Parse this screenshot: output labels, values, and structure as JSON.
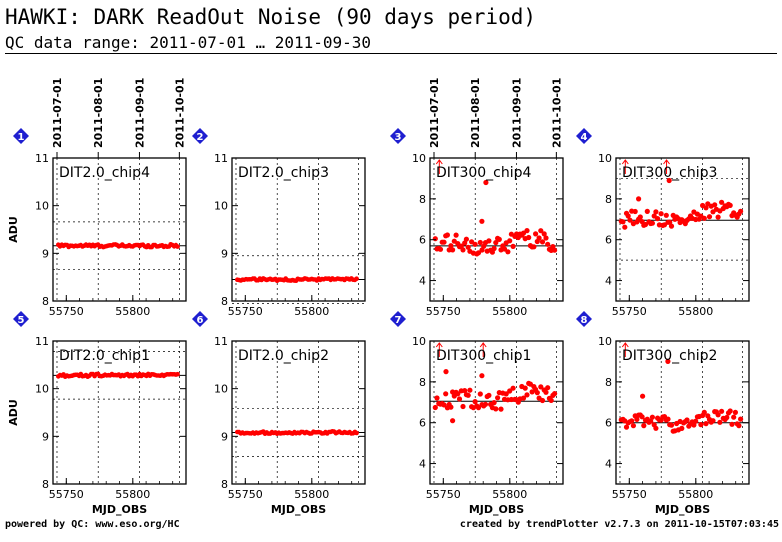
{
  "header": {
    "title": "HAWKI: DARK ReadOut Noise (90 days period)",
    "subtitle": "QC data range: 2011-07-01 … 2011-09-30"
  },
  "footer": {
    "left": "powered by QC: www.eso.org/HC",
    "right": "created by trendPlotter v2.7.3 on 2011-10-15T07:03:45"
  },
  "top_date_labels": [
    "2011-07-01",
    "2011-08-01",
    "2011-09-01",
    "2011-10-01"
  ],
  "top_date_mjd": [
    55743,
    55774,
    55805,
    55835
  ],
  "colors": {
    "data": "#ff0000",
    "badge": "#1f1fd0",
    "axis": "#000000"
  },
  "chart_data": [
    {
      "type": "scatter",
      "badge": "1",
      "label": "DIT2.0_chip4",
      "xlim": [
        55740,
        55840
      ],
      "ylim": [
        8,
        11
      ],
      "yticks": [
        8,
        9,
        10,
        11
      ],
      "xticks": [
        55750,
        55800
      ],
      "ylabel": "ADU",
      "xlabel": "",
      "median": 9.16,
      "dotted": [
        8.66,
        9.66
      ],
      "base": 9.16,
      "amplitude": 0.03,
      "trend": 0,
      "outliers": []
    },
    {
      "type": "scatter",
      "badge": "2",
      "label": "DIT2.0_chip3",
      "xlim": [
        55740,
        55840
      ],
      "ylim": [
        8,
        11
      ],
      "yticks": [
        8,
        9,
        10,
        11
      ],
      "xticks": [
        55750,
        55800
      ],
      "ylabel": "",
      "xlabel": "",
      "median": 8.45,
      "dotted": [
        7.95,
        8.95
      ],
      "base": 8.45,
      "amplitude": 0.025,
      "trend": 0,
      "outliers": []
    },
    {
      "type": "scatter",
      "badge": "3",
      "label": "DIT300_chip4",
      "xlim": [
        55740,
        55840
      ],
      "ylim": [
        3,
        10
      ],
      "yticks": [
        4,
        6,
        8,
        10
      ],
      "xticks": [
        55750,
        55800
      ],
      "ylabel": "",
      "xlabel": "",
      "median": 5.7,
      "dotted": [],
      "base": 5.6,
      "amplitude": 0.45,
      "trend": 0.004,
      "outliers": [
        [
          55782,
          8.8
        ],
        [
          55779,
          6.9
        ]
      ],
      "arrows_mjd": [
        55747
      ]
    },
    {
      "type": "scatter",
      "badge": "4",
      "label": "DIT300_chip3",
      "xlim": [
        55740,
        55840
      ],
      "ylim": [
        3,
        10
      ],
      "yticks": [
        4,
        6,
        8,
        10
      ],
      "xticks": [
        55750,
        55800
      ],
      "ylabel": "",
      "xlabel": "",
      "median": 6.95,
      "dotted": [
        5,
        9
      ],
      "base": 6.85,
      "amplitude": 0.4,
      "trend": 0.006,
      "outliers": [
        [
          55780,
          8.9
        ],
        [
          55757,
          8.0
        ]
      ],
      "arrows_mjd": [
        55747,
        55778
      ]
    },
    {
      "type": "scatter",
      "badge": "5",
      "label": "DIT2.0_chip1",
      "xlim": [
        55740,
        55840
      ],
      "ylim": [
        8,
        11
      ],
      "yticks": [
        8,
        9,
        10,
        11
      ],
      "xticks": [
        55750,
        55800
      ],
      "ylabel": "ADU",
      "xlabel": "MJD_OBS",
      "median": 10.28,
      "dotted": [
        9.78,
        10.78
      ],
      "base": 10.28,
      "amplitude": 0.03,
      "trend": 0,
      "outliers": []
    },
    {
      "type": "scatter",
      "badge": "6",
      "label": "DIT2.0_chip2",
      "xlim": [
        55740,
        55840
      ],
      "ylim": [
        8,
        11
      ],
      "yticks": [
        8,
        9,
        10,
        11
      ],
      "xticks": [
        55750,
        55800
      ],
      "ylabel": "",
      "xlabel": "MJD_OBS",
      "median": 9.08,
      "dotted": [
        8.58,
        9.58
      ],
      "base": 9.08,
      "amplitude": 0.025,
      "trend": 0,
      "outliers": []
    },
    {
      "type": "scatter",
      "badge": "7",
      "label": "DIT300_chip1",
      "xlim": [
        55740,
        55840
      ],
      "ylim": [
        3,
        10
      ],
      "yticks": [
        4,
        6,
        8,
        10
      ],
      "xticks": [
        55750,
        55800
      ],
      "ylabel": "",
      "xlabel": "MJD_OBS",
      "median": 7.05,
      "dotted": [],
      "base": 6.95,
      "amplitude": 0.45,
      "trend": 0.006,
      "outliers": [
        [
          55779,
          8.3
        ],
        [
          55752,
          8.5
        ],
        [
          55757,
          6.1
        ]
      ],
      "arrows_mjd": [
        55747,
        55780
      ]
    },
    {
      "type": "scatter",
      "badge": "8",
      "label": "DIT300_chip2",
      "xlim": [
        55740,
        55840
      ],
      "ylim": [
        3,
        10
      ],
      "yticks": [
        4,
        6,
        8,
        10
      ],
      "xticks": [
        55750,
        55800
      ],
      "ylabel": "",
      "xlabel": "MJD_OBS",
      "median": 6.0,
      "dotted": [],
      "base": 5.9,
      "amplitude": 0.35,
      "trend": 0.004,
      "outliers": [
        [
          55779,
          9.0
        ],
        [
          55760,
          7.3
        ]
      ],
      "arrows_mjd": [
        55747
      ]
    }
  ]
}
